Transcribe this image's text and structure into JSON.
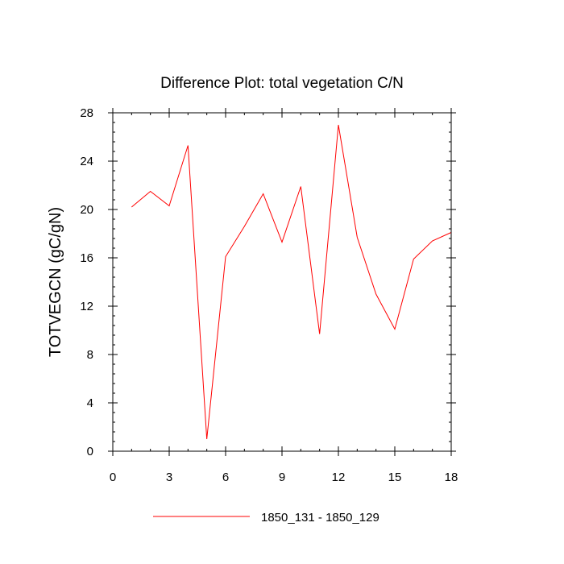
{
  "chart_data": {
    "type": "line",
    "title": "Difference Plot: total vegetation C/N",
    "xlabel": "",
    "ylabel": "TOTVEGCN  (gC/gN)",
    "xlim": [
      0,
      18
    ],
    "ylim": [
      0,
      28
    ],
    "xticks": [
      0,
      3,
      6,
      9,
      12,
      15,
      18
    ],
    "yticks": [
      0,
      4,
      8,
      12,
      16,
      20,
      24,
      28
    ],
    "x_minor_step": 1,
    "y_minor_step": 0.8,
    "grid": false,
    "legend_position": "bottom-center",
    "series": [
      {
        "name": "1850_131 - 1850_129",
        "color": "#ff0000",
        "x": [
          1,
          2,
          3,
          4,
          5,
          6,
          7,
          8,
          9,
          10,
          11,
          12,
          13,
          14,
          15,
          16,
          17,
          18
        ],
        "values": [
          20.2,
          21.5,
          20.3,
          25.3,
          1.0,
          16.1,
          18.6,
          21.3,
          17.3,
          21.9,
          9.7,
          27.0,
          17.7,
          13.0,
          10.1,
          15.9,
          17.4,
          18.1
        ]
      }
    ]
  }
}
